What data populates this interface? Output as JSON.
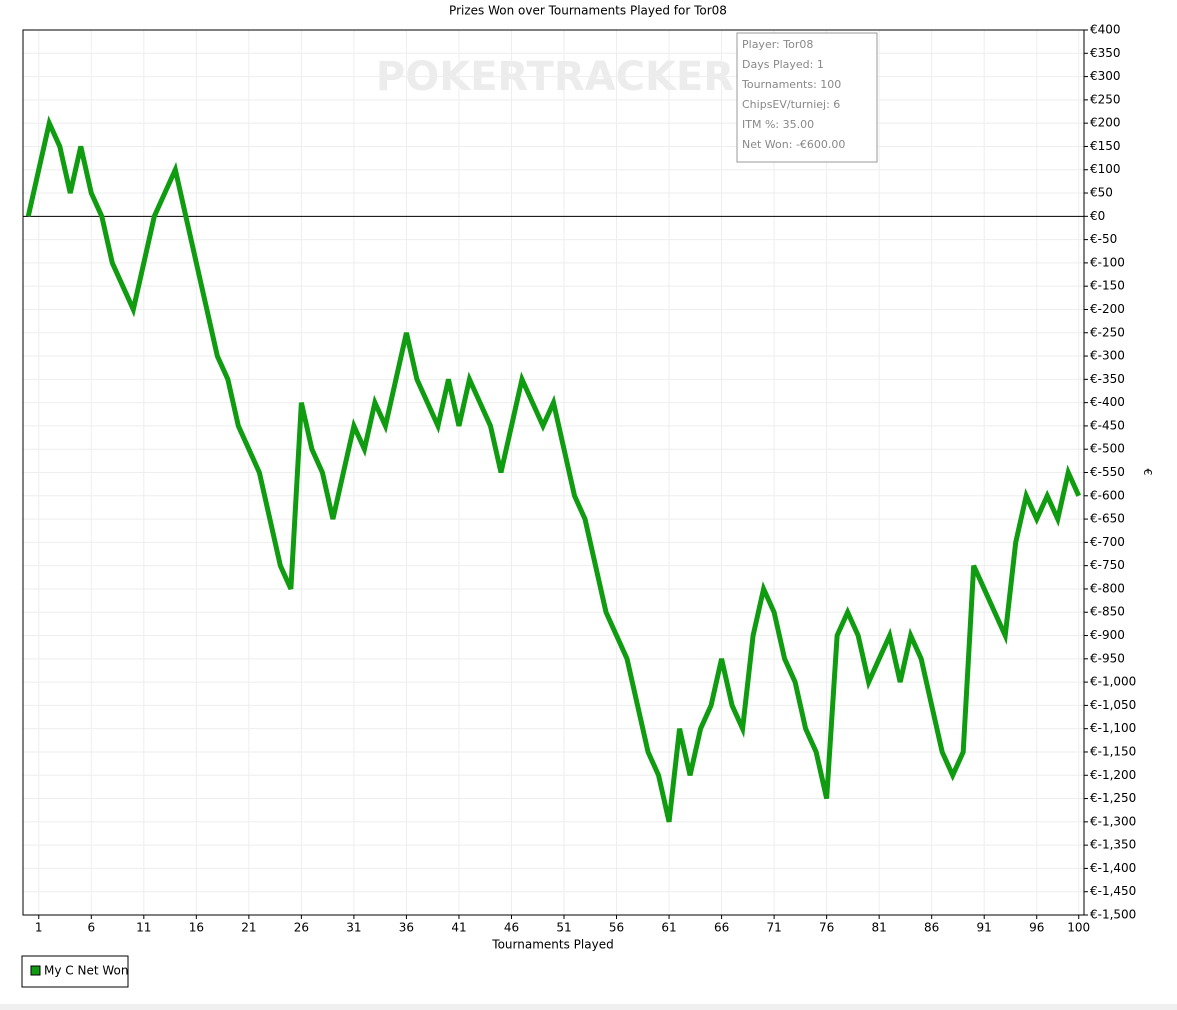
{
  "chart_data": {
    "type": "line",
    "title": "Prizes Won over Tournaments Played for Tor08",
    "xlabel": "Tournaments Played",
    "ylabel": "€",
    "watermark": "POKERTRACKER",
    "info_box": [
      "Player: Tor08",
      "Days Played: 1",
      "Tournaments: 100",
      "ChipsEV/turniej: 6",
      "ITM %: 35.00",
      "Net Won: -€600.00"
    ],
    "x": [
      0,
      1,
      2,
      3,
      4,
      5,
      6,
      7,
      8,
      9,
      10,
      11,
      12,
      13,
      14,
      15,
      16,
      17,
      18,
      19,
      20,
      21,
      22,
      23,
      24,
      25,
      26,
      27,
      28,
      29,
      30,
      31,
      32,
      33,
      34,
      35,
      36,
      37,
      38,
      39,
      40,
      41,
      42,
      43,
      44,
      45,
      46,
      47,
      48,
      49,
      50,
      51,
      52,
      53,
      54,
      55,
      56,
      57,
      58,
      59,
      60,
      61,
      62,
      63,
      64,
      65,
      66,
      67,
      68,
      69,
      70,
      71,
      72,
      73,
      74,
      75,
      76,
      77,
      78,
      79,
      80,
      81,
      82,
      83,
      84,
      85,
      86,
      87,
      88,
      89,
      90,
      91,
      92,
      93,
      94,
      95,
      96,
      97,
      98,
      99,
      100
    ],
    "series": [
      {
        "name": "My C Net Won",
        "color": "#109c10",
        "values": [
          0,
          100,
          200,
          150,
          50,
          150,
          50,
          0,
          -100,
          -150,
          -200,
          -100,
          0,
          50,
          100,
          0,
          -100,
          -200,
          -300,
          -350,
          -450,
          -500,
          -550,
          -650,
          -750,
          -800,
          -400,
          -500,
          -550,
          -650,
          -550,
          -450,
          -500,
          -400,
          -450,
          -350,
          -250,
          -350,
          -400,
          -450,
          -350,
          -450,
          -350,
          -400,
          -450,
          -550,
          -450,
          -350,
          -400,
          -450,
          -400,
          -500,
          -600,
          -650,
          -750,
          -850,
          -900,
          -950,
          -1050,
          -1150,
          -1200,
          -1300,
          -1100,
          -1200,
          -1100,
          -1050,
          -950,
          -1050,
          -1100,
          -900,
          -800,
          -850,
          -950,
          -1000,
          -1100,
          -1150,
          -1250,
          -900,
          -850,
          -900,
          -1000,
          -950,
          -900,
          -1000,
          -900,
          -950,
          -1050,
          -1150,
          -1200,
          -1150,
          -750,
          -800,
          -850,
          -900,
          -700,
          -600,
          -650,
          -600,
          -650,
          -550,
          -600
        ]
      }
    ],
    "xlim": [
      -0.5,
      100.5
    ],
    "xticks": [
      1,
      6,
      11,
      16,
      21,
      26,
      31,
      36,
      41,
      46,
      51,
      56,
      61,
      66,
      71,
      76,
      81,
      86,
      91,
      96,
      100
    ],
    "ylim": [
      -1500,
      400
    ],
    "yticks": [
      {
        "value": 400,
        "label": "€400"
      },
      {
        "value": 350,
        "label": "€350"
      },
      {
        "value": 300,
        "label": "€300"
      },
      {
        "value": 250,
        "label": "€250"
      },
      {
        "value": 200,
        "label": "€200"
      },
      {
        "value": 150,
        "label": "€150"
      },
      {
        "value": 100,
        "label": "€100"
      },
      {
        "value": 50,
        "label": "€50"
      },
      {
        "value": 0,
        "label": "€0"
      },
      {
        "value": -50,
        "label": "€-50"
      },
      {
        "value": -100,
        "label": "€-100"
      },
      {
        "value": -150,
        "label": "€-150"
      },
      {
        "value": -200,
        "label": "€-200"
      },
      {
        "value": -250,
        "label": "€-250"
      },
      {
        "value": -300,
        "label": "€-300"
      },
      {
        "value": -350,
        "label": "€-350"
      },
      {
        "value": -400,
        "label": "€-400"
      },
      {
        "value": -450,
        "label": "€-450"
      },
      {
        "value": -500,
        "label": "€-500"
      },
      {
        "value": -550,
        "label": "€-550"
      },
      {
        "value": -600,
        "label": "€-600"
      },
      {
        "value": -650,
        "label": "€-650"
      },
      {
        "value": -700,
        "label": "€-700"
      },
      {
        "value": -750,
        "label": "€-750"
      },
      {
        "value": -800,
        "label": "€-800"
      },
      {
        "value": -850,
        "label": "€-850"
      },
      {
        "value": -900,
        "label": "€-900"
      },
      {
        "value": -950,
        "label": "€-950"
      },
      {
        "value": -1000,
        "label": "€-1,000"
      },
      {
        "value": -1050,
        "label": "€-1,050"
      },
      {
        "value": -1100,
        "label": "€-1,100"
      },
      {
        "value": -1150,
        "label": "€-1,150"
      },
      {
        "value": -1200,
        "label": "€-1,200"
      },
      {
        "value": -1250,
        "label": "€-1,250"
      },
      {
        "value": -1300,
        "label": "€-1,300"
      },
      {
        "value": -1350,
        "label": "€-1,350"
      },
      {
        "value": -1400,
        "label": "€-1,400"
      },
      {
        "value": -1450,
        "label": "€-1,450"
      },
      {
        "value": -1500,
        "label": "€-1,500"
      }
    ],
    "grid": true,
    "legend": "bottom-left"
  }
}
